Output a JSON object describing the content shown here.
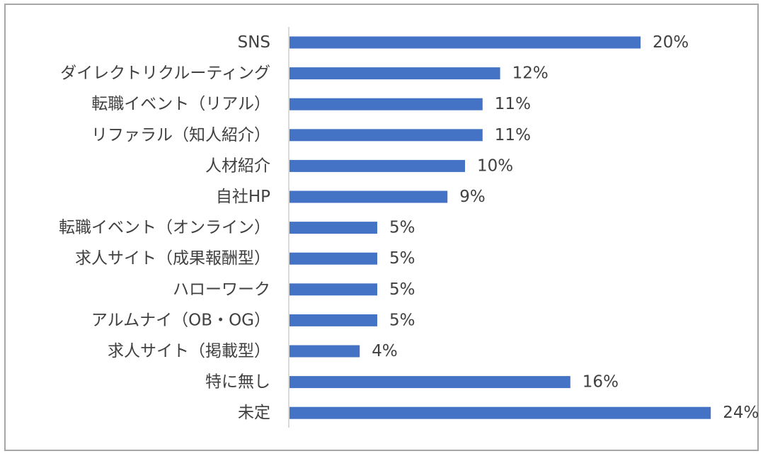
{
  "chart_data": {
    "type": "bar",
    "orientation": "horizontal",
    "title": "",
    "xlabel": "",
    "ylabel": "",
    "categories": [
      "SNS",
      "ダイレクトリクルーティング",
      "転職イベント（リアル）",
      "リファラル（知人紹介）",
      "人材紹介",
      "自社HP",
      "転職イベント（オンライン）",
      "求人サイト（成果報酬型）",
      "ハローワーク",
      "アルムナイ（OB・OG）",
      "求人サイト（掲載型）",
      "特に無し",
      "未定"
    ],
    "values": [
      20,
      12,
      11,
      11,
      10,
      9,
      5,
      5,
      5,
      5,
      4,
      16,
      24
    ],
    "value_labels": [
      "20%",
      "12%",
      "11%",
      "11%",
      "10%",
      "9%",
      "5%",
      "5%",
      "5%",
      "5%",
      "4%",
      "16%",
      "24%"
    ],
    "xlim": [
      0,
      25
    ],
    "unit": "%",
    "grid": false,
    "legend": "none",
    "bar_color": "#4472c4",
    "axis_color": "#d9d9d9",
    "text_color": "#404040",
    "border_color": "#a6a6a6"
  }
}
